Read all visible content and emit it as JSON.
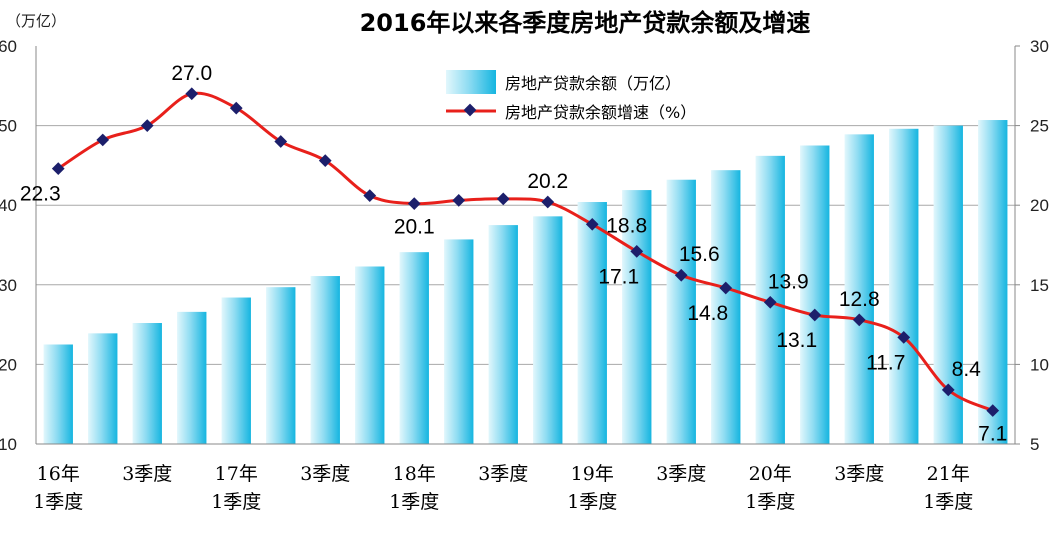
{
  "chart_data": {
    "type": "bar+line",
    "title": "2016年以来各季度房地产贷款余额及增速",
    "y_left_unit": "（万亿）",
    "y_left_lim": [
      10,
      60
    ],
    "y_left_ticks": [
      "10",
      "20",
      "30",
      "40",
      "50",
      "60"
    ],
    "y_right_lim": [
      5,
      30
    ],
    "y_right_ticks": [
      "5",
      "10",
      "15",
      "20",
      "25",
      "30"
    ],
    "x_tick_labels": [
      {
        "index": 0,
        "lines": [
          "16年",
          "1季度"
        ]
      },
      {
        "index": 2,
        "lines": [
          "3季度"
        ]
      },
      {
        "index": 4,
        "lines": [
          "17年",
          "1季度"
        ]
      },
      {
        "index": 6,
        "lines": [
          "3季度"
        ]
      },
      {
        "index": 8,
        "lines": [
          "18年",
          "1季度"
        ]
      },
      {
        "index": 10,
        "lines": [
          "3季度"
        ]
      },
      {
        "index": 12,
        "lines": [
          "19年",
          "1季度"
        ]
      },
      {
        "index": 14,
        "lines": [
          "3季度"
        ]
      },
      {
        "index": 16,
        "lines": [
          "20年",
          "1季度"
        ]
      },
      {
        "index": 18,
        "lines": [
          "3季度"
        ]
      },
      {
        "index": 20,
        "lines": [
          "21年",
          "1季度"
        ]
      }
    ],
    "series": [
      {
        "name": "房地产贷款余额（万亿）",
        "kind": "bar",
        "axis": "left",
        "values": [
          22.5,
          23.9,
          25.2,
          26.6,
          28.4,
          29.7,
          31.1,
          32.3,
          34.1,
          35.7,
          37.5,
          38.6,
          40.4,
          41.9,
          43.2,
          44.4,
          46.2,
          47.5,
          48.9,
          49.6,
          50.0,
          50.7
        ]
      },
      {
        "name": "房地产贷款余额增速（%）",
        "kind": "line",
        "axis": "right",
        "color": "#e8201b",
        "marker_color": "#1c1f6b",
        "values": [
          22.3,
          24.1,
          25.0,
          27.0,
          26.1,
          24.0,
          22.8,
          20.6,
          20.1,
          20.3,
          20.4,
          20.2,
          18.8,
          17.1,
          15.6,
          14.8,
          13.9,
          13.1,
          12.8,
          11.7,
          8.4,
          7.1
        ]
      }
    ],
    "data_labels": [
      {
        "index": 0,
        "text": "22.3",
        "pos": "below-left"
      },
      {
        "index": 3,
        "text": "27.0",
        "pos": "above"
      },
      {
        "index": 8,
        "text": "20.1",
        "pos": "below"
      },
      {
        "index": 11,
        "text": "20.2",
        "pos": "above"
      },
      {
        "index": 12,
        "text": "18.8",
        "pos": "right"
      },
      {
        "index": 13,
        "text": "17.1",
        "pos": "below-left"
      },
      {
        "index": 14,
        "text": "15.6",
        "pos": "above-right"
      },
      {
        "index": 15,
        "text": "14.8",
        "pos": "below-left"
      },
      {
        "index": 16,
        "text": "13.9",
        "pos": "above-right"
      },
      {
        "index": 17,
        "text": "13.1",
        "pos": "below-left"
      },
      {
        "index": 18,
        "text": "12.8",
        "pos": "above"
      },
      {
        "index": 19,
        "text": "11.7",
        "pos": "below-left"
      },
      {
        "index": 20,
        "text": "8.4",
        "pos": "above-right"
      },
      {
        "index": 21,
        "text": "7.1",
        "pos": "below"
      }
    ],
    "grid": true,
    "legend_position": "top-center",
    "colors": {
      "bar_light": "#dff6fc",
      "bar_dark": "#19b8e2",
      "line": "#e8201b",
      "marker": "#1c1f6b",
      "grid": "#a8a8a8"
    }
  }
}
